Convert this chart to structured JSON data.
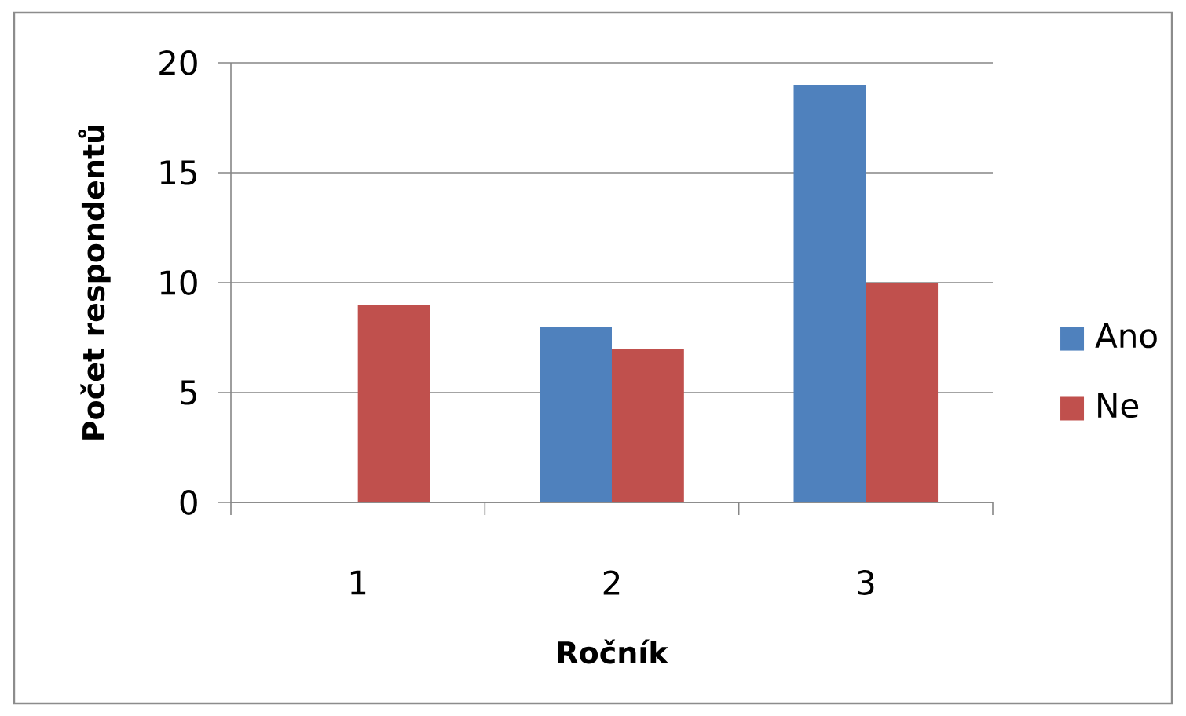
{
  "chart_data": {
    "type": "bar",
    "xlabel": "Ročník",
    "ylabel": "Počet respondentů",
    "categories": [
      "1",
      "2",
      "3"
    ],
    "series": [
      {
        "name": "Ano",
        "color": "#4f81bd",
        "values": [
          0,
          8,
          19
        ]
      },
      {
        "name": "Ne",
        "color": "#c0504d",
        "values": [
          9,
          7,
          10
        ]
      }
    ],
    "ylim": [
      0,
      20
    ],
    "yticks": [
      0,
      5,
      10,
      15,
      20
    ],
    "grid": "y",
    "legend": "right"
  }
}
